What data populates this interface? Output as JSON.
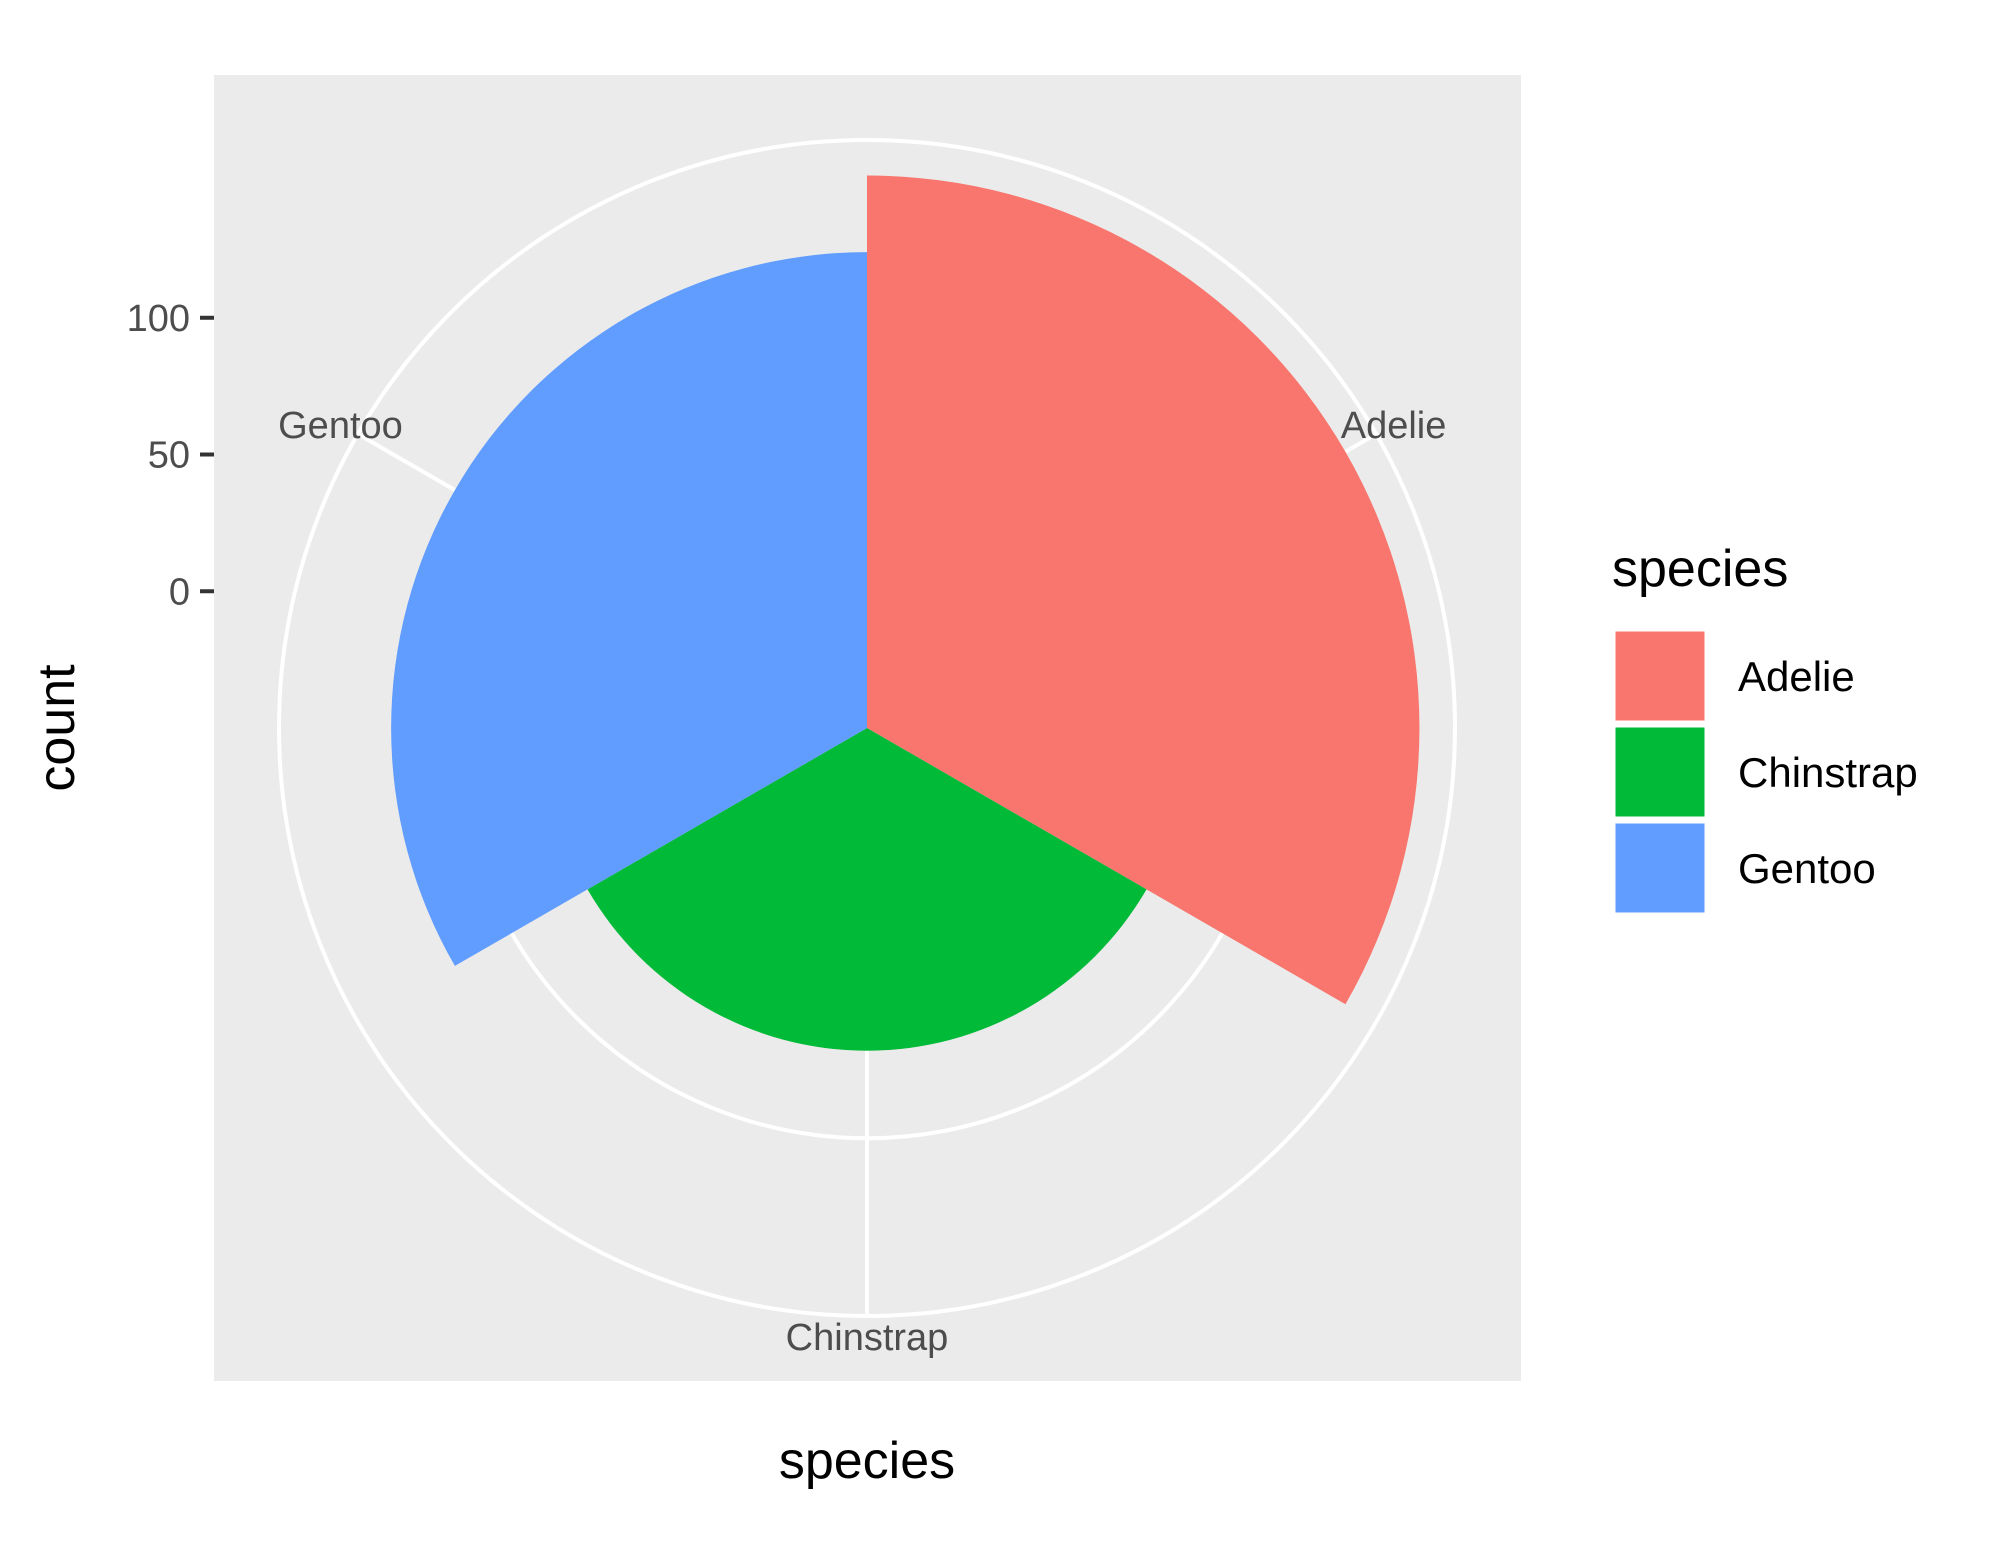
{
  "chart_data": {
    "type": "bar",
    "coord": "polar",
    "categories": [
      "Adelie",
      "Chinstrap",
      "Gentoo"
    ],
    "values": [
      152,
      68,
      124
    ],
    "xlabel": "species",
    "ylabel": "count",
    "y_ticks": [
      0,
      50,
      100
    ],
    "ylim": [
      -50,
      165
    ],
    "grid": true,
    "panel_background": "#EBEBEB",
    "colors": {
      "Adelie": "#F8766D",
      "Chinstrap": "#00BA38",
      "Gentoo": "#619CFF"
    },
    "legend": {
      "title": "species",
      "position": "right",
      "entries": [
        "Adelie",
        "Chinstrap",
        "Gentoo"
      ]
    }
  }
}
